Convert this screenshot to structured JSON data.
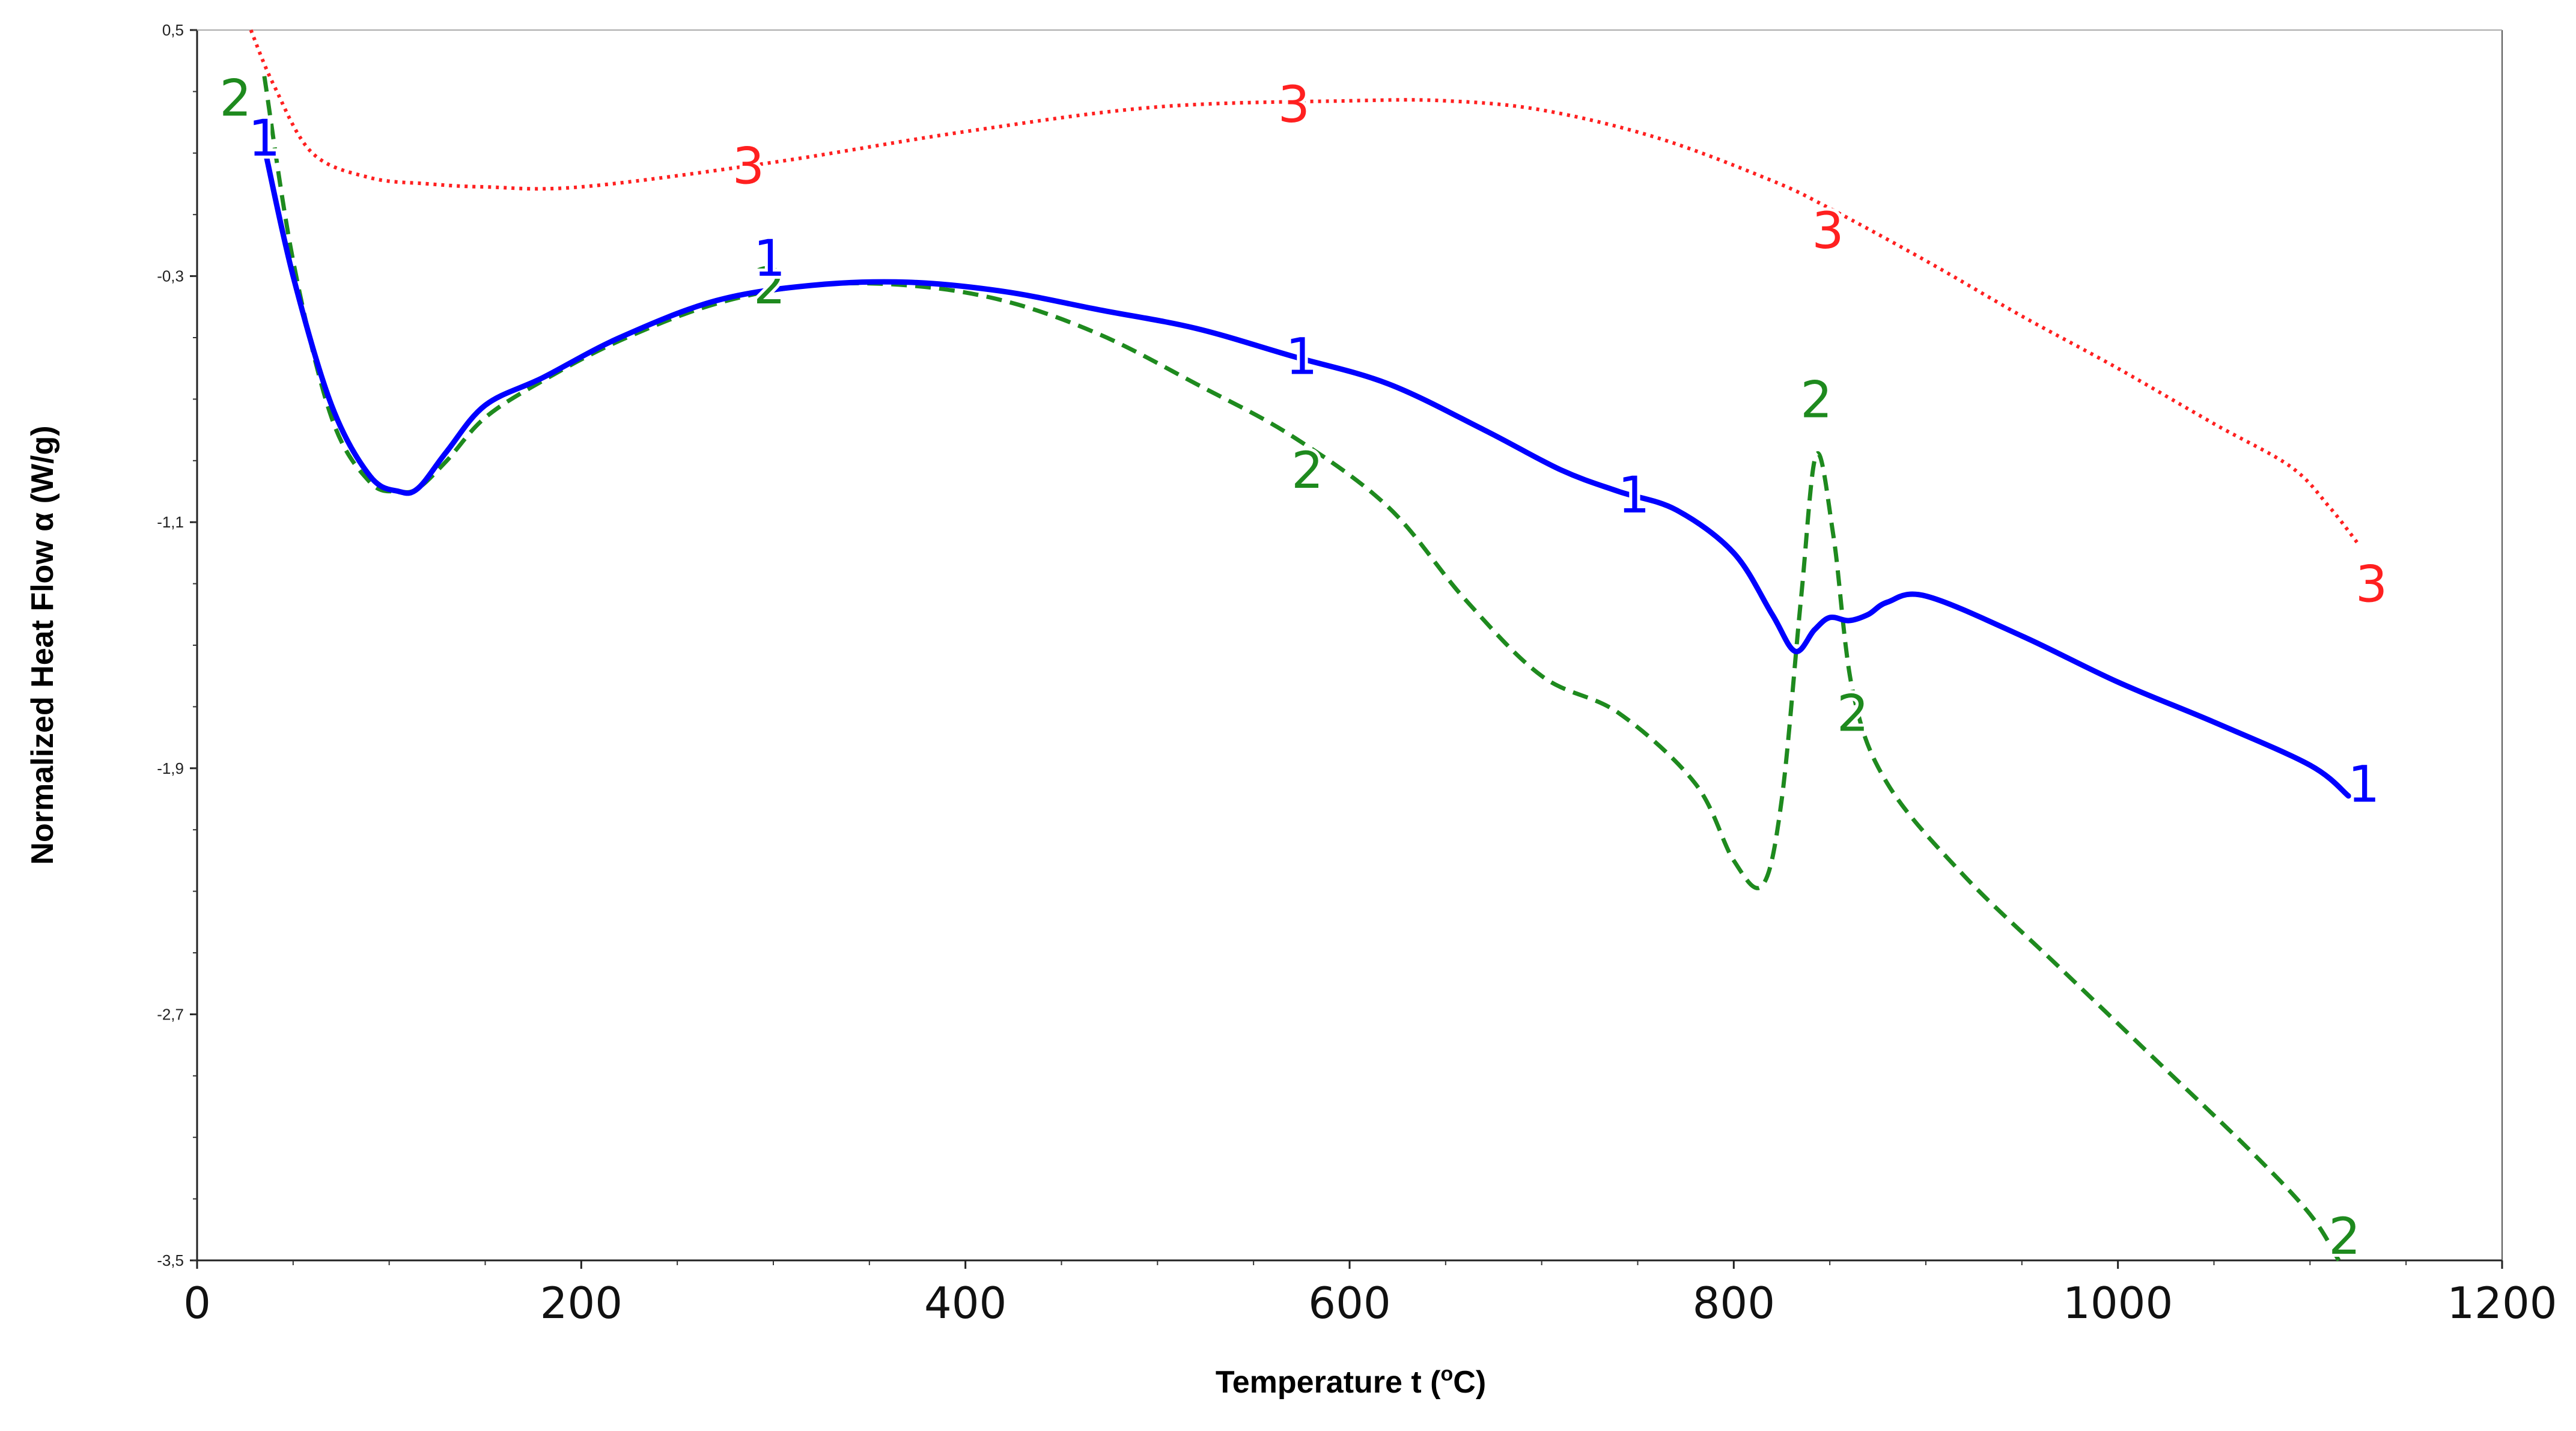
{
  "chart_data": {
    "type": "line",
    "title": "",
    "xlabel": "Temperature t (°C)",
    "xlabel_parts": {
      "prefix": "Temperature t (",
      "sup": "o",
      "suffix": "C)"
    },
    "ylabel": "Normalized Heat Flow α (W/g)",
    "xlim": [
      0,
      1200
    ],
    "ylim": [
      -3.5,
      0.5
    ],
    "x_ticks": [
      0,
      200,
      400,
      600,
      800,
      1000,
      1200
    ],
    "x_tick_labels": [
      "0",
      "200",
      "400",
      "600",
      "800",
      "1000",
      "1200"
    ],
    "y_ticks": [
      0.5,
      -0.3,
      -1.1,
      -1.9,
      -2.7,
      -3.5
    ],
    "y_tick_labels": [
      "0,5",
      "-0,3",
      "-1,1",
      "-1,9",
      "-2,7",
      "-3,5"
    ],
    "grid": false,
    "series": [
      {
        "name": "1",
        "color": "#0000ff",
        "style": "solid",
        "x": [
          35,
          50,
          70,
          90,
          105,
          115,
          130,
          150,
          180,
          220,
          270,
          320,
          370,
          420,
          470,
          520,
          570,
          620,
          670,
          710,
          740,
          770,
          800,
          820,
          832,
          842,
          850,
          860,
          870,
          880,
          900,
          950,
          1000,
          1050,
          1100,
          1120
        ],
        "y": [
          0.12,
          -0.3,
          -0.72,
          -0.95,
          -1.0,
          -0.99,
          -0.87,
          -0.72,
          -0.63,
          -0.5,
          -0.38,
          -0.33,
          -0.32,
          -0.35,
          -0.41,
          -0.47,
          -0.56,
          -0.65,
          -0.8,
          -0.93,
          -1.0,
          -1.06,
          -1.2,
          -1.4,
          -1.52,
          -1.45,
          -1.41,
          -1.42,
          -1.4,
          -1.36,
          -1.34,
          -1.47,
          -1.62,
          -1.75,
          -1.89,
          -1.99
        ],
        "labels": [
          {
            "text": "1",
            "x": 35,
            "y": 0.15
          },
          {
            "text": "1",
            "x": 298,
            "y": -0.24
          },
          {
            "text": "1",
            "x": 575,
            "y": -0.56
          },
          {
            "text": "1",
            "x": 748,
            "y": -1.01
          },
          {
            "text": "1",
            "x": 1128,
            "y": -1.95
          }
        ]
      },
      {
        "name": "2",
        "color": "#1e8a1e",
        "style": "dashed",
        "x": [
          35,
          50,
          70,
          90,
          105,
          115,
          130,
          150,
          180,
          220,
          270,
          320,
          370,
          420,
          470,
          520,
          570,
          620,
          660,
          700,
          740,
          780,
          800,
          815,
          825,
          835,
          843,
          852,
          862,
          880,
          920,
          970,
          1020,
          1070,
          1100,
          1115
        ],
        "y": [
          0.35,
          -0.25,
          -0.76,
          -0.97,
          -1.0,
          -0.99,
          -0.9,
          -0.76,
          -0.64,
          -0.51,
          -0.39,
          -0.33,
          -0.33,
          -0.38,
          -0.49,
          -0.65,
          -0.82,
          -1.05,
          -1.35,
          -1.6,
          -1.72,
          -1.95,
          -2.2,
          -2.28,
          -2.0,
          -1.35,
          -0.88,
          -1.15,
          -1.65,
          -1.95,
          -2.25,
          -2.55,
          -2.85,
          -3.15,
          -3.35,
          -3.5
        ],
        "labels": [
          {
            "text": "2",
            "x": 20,
            "y": 0.28
          },
          {
            "text": "2",
            "x": 298,
            "y": -0.33
          },
          {
            "text": "2",
            "x": 578,
            "y": -0.93
          },
          {
            "text": "2",
            "x": 843,
            "y": -0.7
          },
          {
            "text": "2",
            "x": 862,
            "y": -1.72
          },
          {
            "text": "2",
            "x": 1118,
            "y": -3.42
          }
        ]
      },
      {
        "name": "3",
        "color": "#ff2020",
        "style": "dotted",
        "x": [
          28,
          40,
          60,
          90,
          120,
          150,
          200,
          300,
          400,
          500,
          600,
          650,
          700,
          760,
          820,
          850,
          900,
          950,
          1000,
          1050,
          1090,
          1110,
          1125
        ],
        "y": [
          0.5,
          0.32,
          0.1,
          0.02,
          0.0,
          -0.01,
          -0.01,
          0.07,
          0.17,
          0.25,
          0.27,
          0.27,
          0.24,
          0.15,
          0.01,
          -0.08,
          -0.25,
          -0.43,
          -0.6,
          -0.78,
          -0.92,
          -1.05,
          -1.17
        ],
        "labels": [
          {
            "text": "3",
            "x": 287,
            "y": 0.06
          },
          {
            "text": "3",
            "x": 571,
            "y": 0.26
          },
          {
            "text": "3",
            "x": 849,
            "y": -0.15
          },
          {
            "text": "3",
            "x": 1132,
            "y": -1.3
          }
        ]
      }
    ]
  }
}
